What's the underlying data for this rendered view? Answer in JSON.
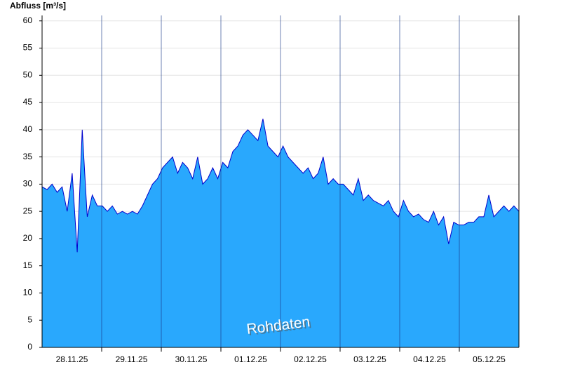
{
  "chart_data": {
    "type": "area",
    "y_label": "Abfluss [m³/s]",
    "annotation": "Rohdaten",
    "categories": [
      "28.11.25",
      "29.11.25",
      "30.11.25",
      "01.12.25",
      "02.12.25",
      "03.12.25",
      "04.12.25",
      "05.12.25"
    ],
    "values": [
      [
        29.5,
        29,
        30,
        28.5,
        29.5,
        25,
        32,
        17.5,
        40,
        24,
        28,
        26
      ],
      [
        26,
        25,
        26,
        24.5,
        25,
        24.5,
        25,
        24.5,
        26,
        28,
        30,
        31
      ],
      [
        33,
        34,
        35,
        32,
        34,
        33,
        31,
        35,
        30,
        31,
        33,
        31
      ],
      [
        34,
        33,
        36,
        37,
        39,
        40,
        39,
        38,
        42,
        37,
        36,
        35
      ],
      [
        37,
        35,
        34,
        33,
        32,
        33,
        31,
        32,
        35,
        30,
        31,
        30
      ],
      [
        30,
        29,
        28,
        31,
        27,
        28,
        27,
        26.5,
        26,
        27,
        25,
        24
      ],
      [
        27,
        25,
        24,
        24.5,
        23.5,
        23,
        25,
        22.5,
        24,
        19,
        23,
        22.5
      ],
      [
        22.5,
        23,
        23,
        24,
        24,
        28,
        24,
        25,
        26,
        25,
        26,
        25
      ]
    ],
    "color": "#29a8fd",
    "line_color": "#0000cc",
    "ylim": [
      0,
      61
    ],
    "yticks": [
      0,
      5,
      10,
      15,
      20,
      25,
      30,
      35,
      40,
      45,
      50,
      55,
      60
    ],
    "grid": true
  }
}
